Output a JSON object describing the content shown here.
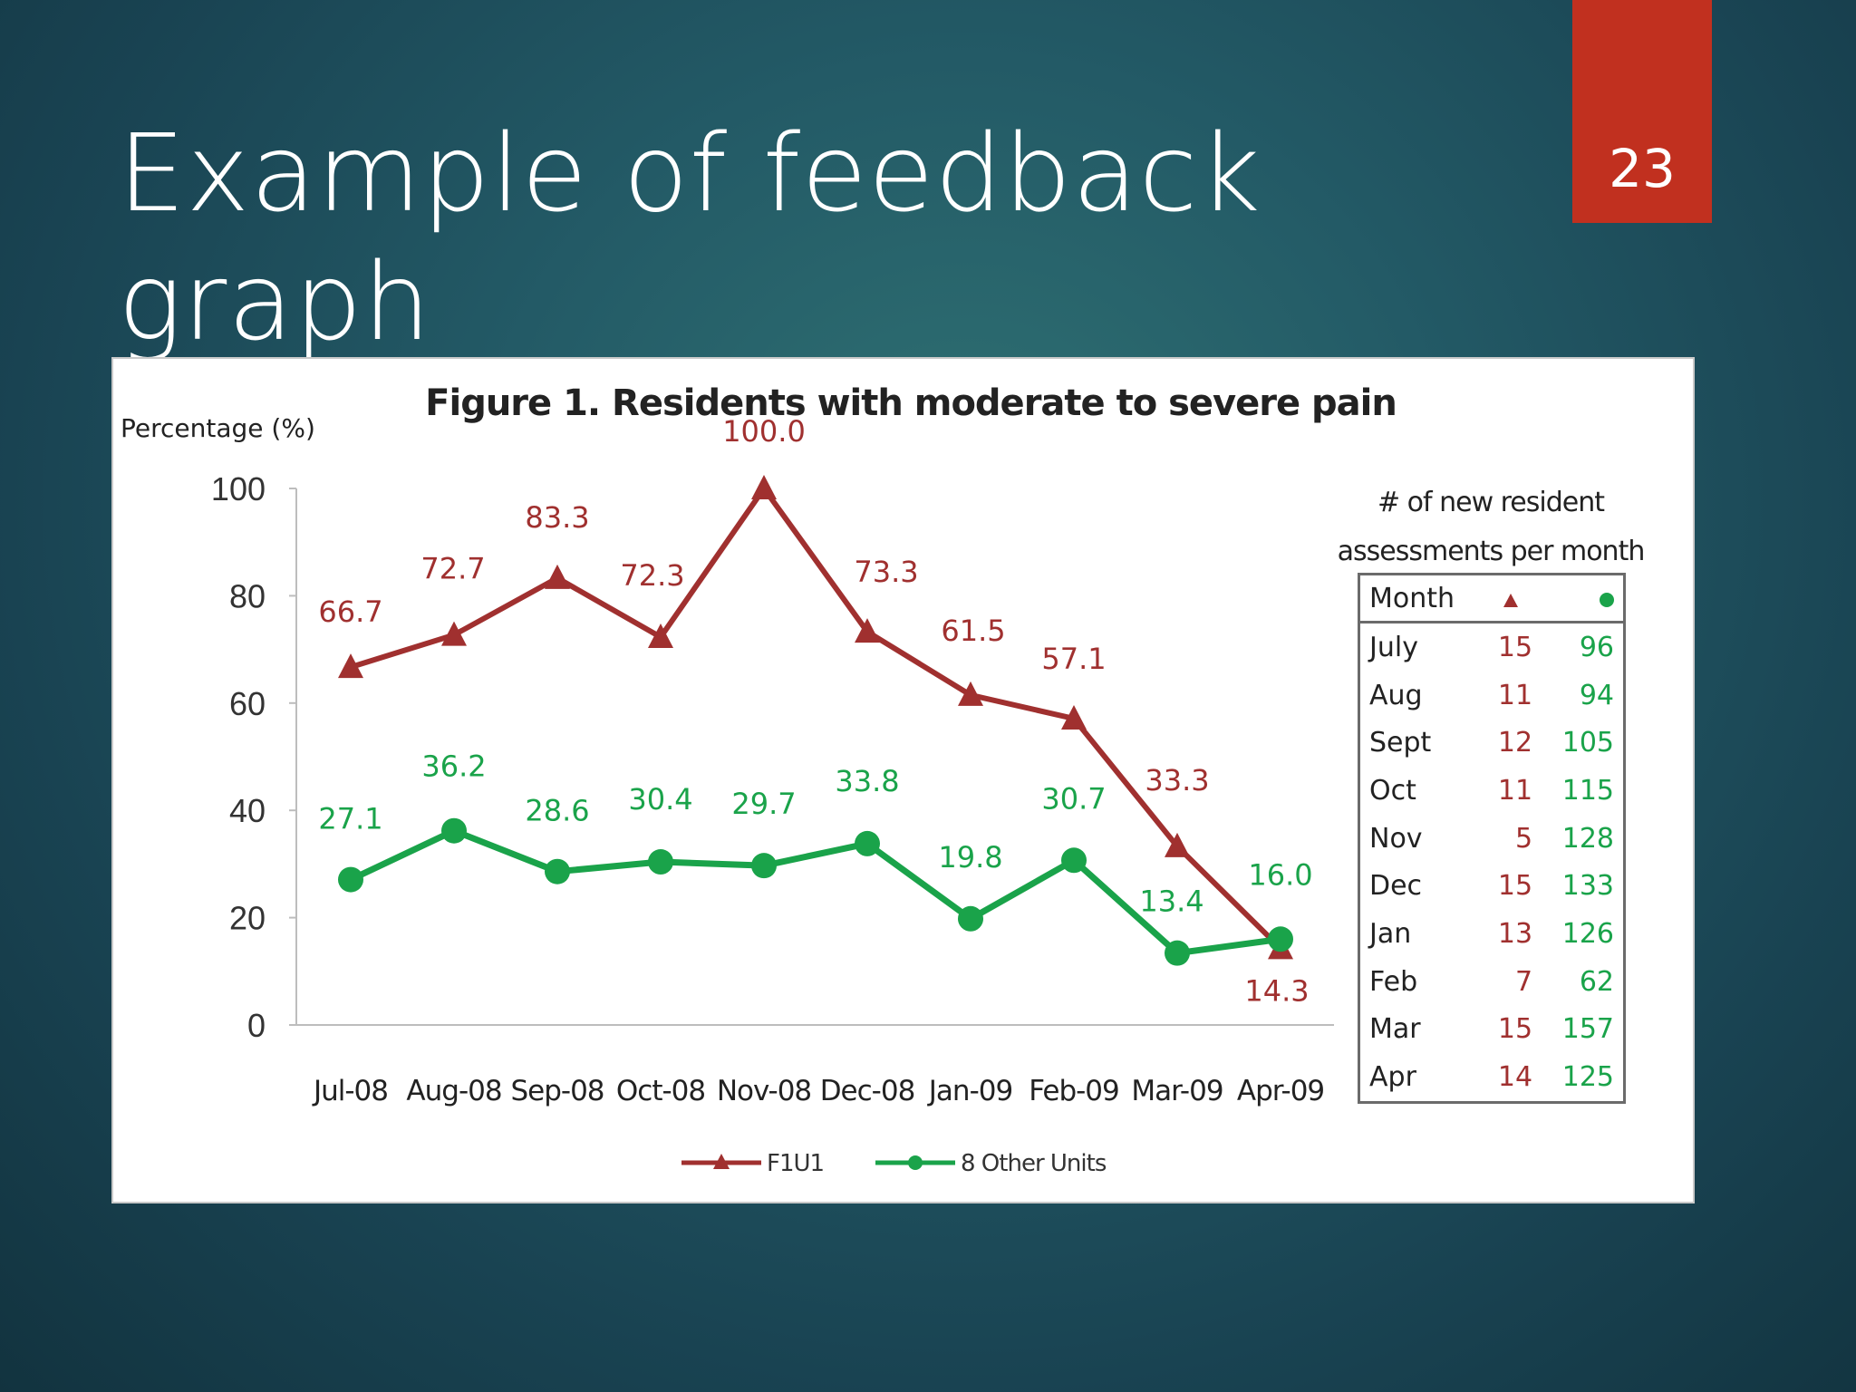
{
  "slide": {
    "title": "Example of feedback graph",
    "page_number": "23",
    "accent_color": "#c1301f"
  },
  "chart_data": {
    "type": "line",
    "title": "Figure 1. Residents with moderate to severe pain",
    "ylabel": "Percentage (%)",
    "xlabel": "",
    "ylim": [
      0,
      100
    ],
    "yticks": [
      0,
      20,
      40,
      60,
      80,
      100
    ],
    "categories": [
      "Jul-08",
      "Aug-08",
      "Sep-08",
      "Oct-08",
      "Nov-08",
      "Dec-08",
      "Jan-09",
      "Feb-09",
      "Mar-09",
      "Apr-09"
    ],
    "series": [
      {
        "name": "F1U1",
        "color": "#a0302f",
        "marker": "triangle",
        "values": [
          66.7,
          72.7,
          83.3,
          72.3,
          100.0,
          73.3,
          61.5,
          57.1,
          33.3,
          14.3
        ]
      },
      {
        "name": "8 Other Units",
        "color": "#1aa34a",
        "marker": "circle",
        "values": [
          27.1,
          36.2,
          28.6,
          30.4,
          29.7,
          33.8,
          19.8,
          30.7,
          13.4,
          16.0
        ]
      }
    ],
    "legend_position": "bottom",
    "grid": false,
    "table": {
      "caption": "# of new resident assessments per month",
      "header": {
        "month": "Month"
      },
      "rows": [
        {
          "month": "July",
          "f1u1": "15",
          "other": "96"
        },
        {
          "month": "Aug",
          "f1u1": "11",
          "other": "94"
        },
        {
          "month": "Sept",
          "f1u1": "12",
          "other": "105"
        },
        {
          "month": "Oct",
          "f1u1": "11",
          "other": "115"
        },
        {
          "month": "Nov",
          "f1u1": "5",
          "other": "128"
        },
        {
          "month": "Dec",
          "f1u1": "15",
          "other": "133"
        },
        {
          "month": "Jan",
          "f1u1": "13",
          "other": "126"
        },
        {
          "month": "Feb",
          "f1u1": "7",
          "other": "62"
        },
        {
          "month": "Mar",
          "f1u1": "15",
          "other": "157"
        },
        {
          "month": "Apr",
          "f1u1": "14",
          "other": "125"
        }
      ]
    }
  }
}
